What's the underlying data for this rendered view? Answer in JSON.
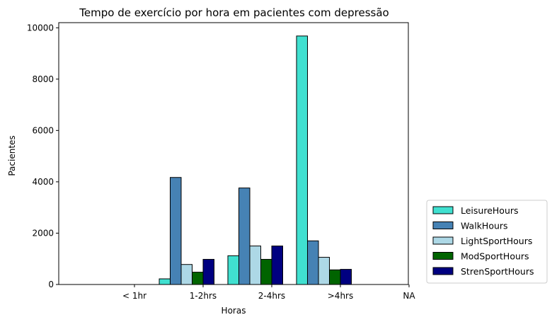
{
  "chart_data": {
    "type": "bar",
    "title": "Tempo de exercício por hora em pacientes com depressão",
    "xlabel": "Horas",
    "ylabel": "Pacientes",
    "ylim": [
      0,
      10200
    ],
    "yticks": [
      0,
      2000,
      4000,
      6000,
      8000,
      10000
    ],
    "xtick_labels": [
      "< 1hr",
      "1-2hrs",
      "2-4hrs",
      ">4hrs",
      "NA"
    ],
    "grid": false,
    "legend_position": "lower-right-outside",
    "series": [
      {
        "name": "LeisureHours",
        "color": "#40e0d0",
        "values": [
          0,
          220,
          1120,
          9680,
          0
        ]
      },
      {
        "name": "WalkHours",
        "color": "#4682b4",
        "values": [
          0,
          4170,
          3760,
          1700,
          0
        ]
      },
      {
        "name": "LightSportHours",
        "color": "#add8e6",
        "values": [
          0,
          780,
          1500,
          1060,
          0
        ]
      },
      {
        "name": "ModSportHours",
        "color": "#006400",
        "values": [
          0,
          480,
          980,
          570,
          0
        ]
      },
      {
        "name": "StrenSportHours",
        "color": "#000080",
        "values": [
          0,
          980,
          1500,
          590,
          0
        ]
      }
    ]
  }
}
